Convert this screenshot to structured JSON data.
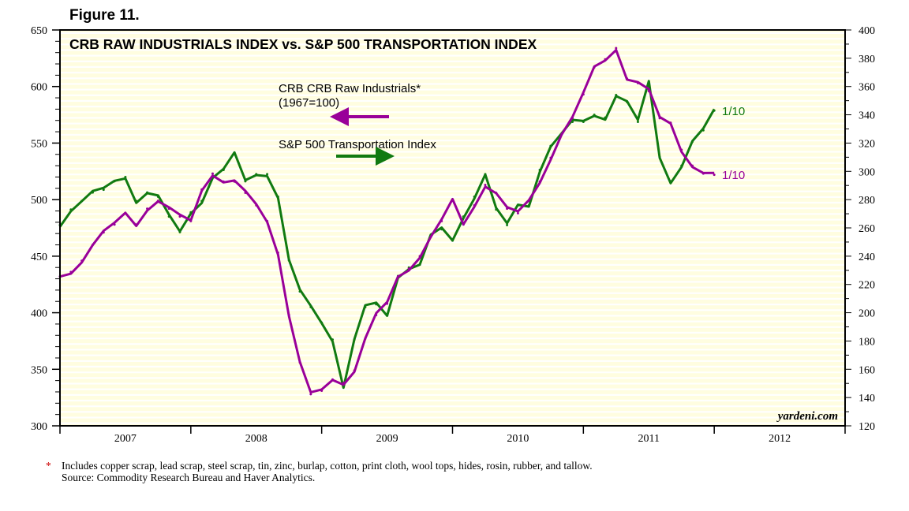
{
  "figure_label": "Figure 11.",
  "footnote": "Includes copper scrap, lead scrap, steel scrap, tin, zinc, burlap, cotton, print cloth, wool tops, hides, rosin, rubber, and tallow.",
  "footnote_mark": "*",
  "source": "Source: Commodity Research Bureau and Haver Analytics.",
  "watermark": "yardeni.com",
  "colors": {
    "crb": "#990099",
    "transport": "#117a11",
    "background": "#fffde0"
  },
  "chart_data": {
    "type": "line",
    "title": "CRB RAW INDUSTRIALS INDEX vs. S&P 500 TRANSPORTATION INDEX",
    "x_start": "2007-01",
    "x_end": "2012-12",
    "x_ticks": [
      "2007",
      "2008",
      "2009",
      "2010",
      "2011",
      "2012"
    ],
    "left_axis": {
      "range": [
        300,
        650
      ],
      "ticks": [
        300,
        350,
        400,
        450,
        500,
        550,
        600,
        650
      ]
    },
    "right_axis": {
      "range": [
        120,
        400
      ],
      "ticks": [
        120,
        140,
        160,
        180,
        200,
        220,
        240,
        260,
        280,
        300,
        320,
        340,
        360,
        380,
        400
      ]
    },
    "grid": "horizontal stripes",
    "series": [
      {
        "name": "CRB CRB Raw Industrials*",
        "subtitle": "(1967=100)",
        "axis": "left",
        "end_label": "1/10",
        "values": [
          432,
          436,
          446,
          460,
          471,
          478,
          488,
          478,
          492,
          499,
          492,
          485,
          481,
          509,
          523,
          516,
          516,
          506,
          495,
          481,
          453,
          398,
          356,
          328,
          331,
          341,
          338,
          349,
          377,
          398,
          408,
          432,
          439,
          450,
          467,
          481,
          499,
          478,
          495,
          513,
          506,
          492,
          488,
          499,
          516,
          537,
          558,
          572,
          593,
          617,
          624,
          634,
          607,
          603,
          596,
          572,
          568,
          544,
          530,
          523,
          522
        ]
      },
      {
        "name": "S&P 500 Transportation Index",
        "axis": "right",
        "end_label": "1/10",
        "values": [
          262,
          273,
          279,
          285,
          287,
          293,
          296,
          279,
          285,
          282,
          268,
          257,
          271,
          279,
          296,
          301,
          312,
          293,
          298,
          298,
          282,
          237,
          215,
          204,
          193,
          181,
          148,
          181,
          204,
          206,
          198,
          226,
          232,
          234,
          254,
          259,
          251,
          268,
          282,
          298,
          273,
          262,
          276,
          276,
          301,
          318,
          326,
          335,
          335,
          340,
          338,
          354,
          349,
          335,
          363,
          310,
          293,
          304,
          321,
          329,
          343
        ]
      }
    ]
  }
}
